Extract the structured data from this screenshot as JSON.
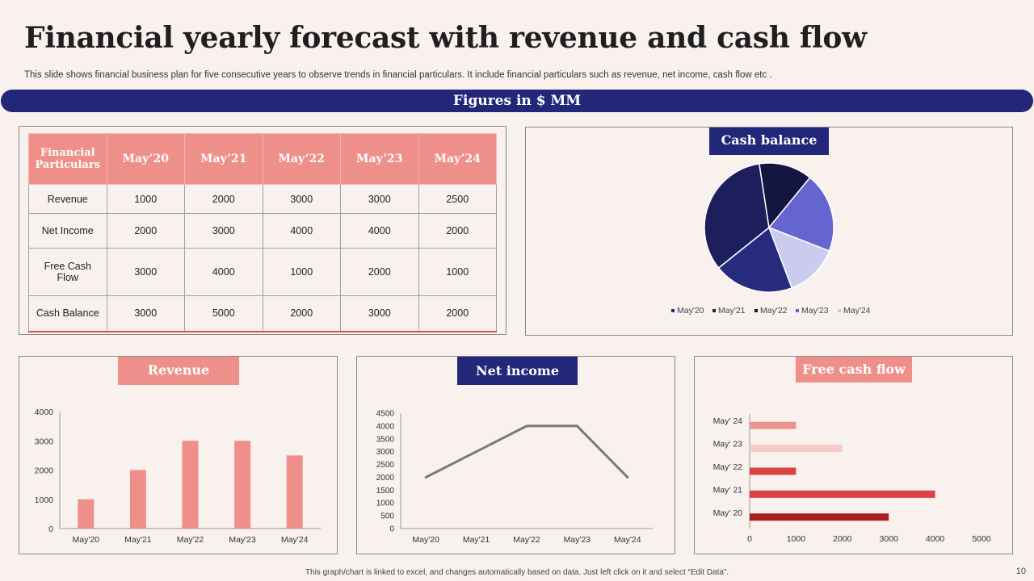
{
  "title": "Financial yearly forecast with revenue and cash flow",
  "subtitle": "This slide shows financial business plan for five  consecutive years to observe trends in financial particulars. It include financial particulars such as revenue, net income, cash flow etc .",
  "banner": "Figures in $ MM",
  "table": {
    "header_first": "Financial Particulars",
    "columns": [
      "May’20",
      "May’21",
      "May’22",
      "May’23",
      "May’24"
    ],
    "rows": [
      {
        "label": "Revenue",
        "values": [
          "1000",
          "2000",
          "3000",
          "3000",
          "2500"
        ]
      },
      {
        "label": "Net Income",
        "values": [
          "2000",
          "3000",
          "4000",
          "4000",
          "2000"
        ]
      },
      {
        "label": "Free Cash Flow",
        "values": [
          "3000",
          "4000",
          "1000",
          "2000",
          "1000"
        ]
      },
      {
        "label": "Cash Balance",
        "values": [
          "3000",
          "5000",
          "2000",
          "3000",
          "2000"
        ]
      }
    ]
  },
  "panels": {
    "cash_balance": "Cash balance",
    "revenue": "Revenue",
    "net_income": "Net income",
    "free_cash_flow": "Free cash flow"
  },
  "colors": {
    "navy": "#23277a",
    "salmon": "#ef8f8a",
    "pie": [
      "#272b7d",
      "#1c1f5c",
      "#131540",
      "#6565cf",
      "#cacbee"
    ],
    "fcf": [
      "#a81f1f",
      "#dd4142",
      "#dd4142",
      "#f7c9c7",
      "#ea938f"
    ]
  },
  "footer": "This graph/chart is linked to excel, and changes automatically based on data. Just left click on it and select “Edit Data”.",
  "page_number": "10",
  "chart_data": [
    {
      "id": "cash_balance",
      "type": "pie",
      "title": "Cash balance",
      "categories": [
        "May'20",
        "May'21",
        "May'22",
        "May'23",
        "May'24"
      ],
      "values": [
        3000,
        5000,
        2000,
        3000,
        2000
      ],
      "legend": "bottom"
    },
    {
      "id": "revenue",
      "type": "bar",
      "title": "Revenue",
      "categories": [
        "May'20",
        "May'21",
        "May'22",
        "May'23",
        "May'24"
      ],
      "values": [
        1000,
        2000,
        3000,
        3000,
        2500
      ],
      "ylim": [
        0,
        4000
      ],
      "yticks": [
        "0",
        "1000",
        "2000",
        "3000",
        "4000"
      ]
    },
    {
      "id": "net_income",
      "type": "line",
      "title": "Net income",
      "categories": [
        "May'20",
        "May'21",
        "May'22",
        "May'23",
        "May'24"
      ],
      "values": [
        2000,
        3000,
        4000,
        4000,
        2000
      ],
      "ylim": [
        0,
        4500
      ],
      "yticks": [
        "0",
        "500",
        "1000",
        "1500",
        "2000",
        "2500",
        "3000",
        "3500",
        "4000",
        "4500"
      ]
    },
    {
      "id": "free_cash_flow",
      "type": "bar",
      "orientation": "horizontal",
      "title": "Free cash flow",
      "categories": [
        "May' 20",
        "May' 21",
        "May' 22",
        "May' 23",
        "May' 24"
      ],
      "values": [
        3000,
        4000,
        1000,
        2000,
        1000
      ],
      "xlim": [
        0,
        5000
      ],
      "xticks": [
        "0",
        "1000",
        "2000",
        "3000",
        "4000",
        "5000"
      ]
    }
  ]
}
